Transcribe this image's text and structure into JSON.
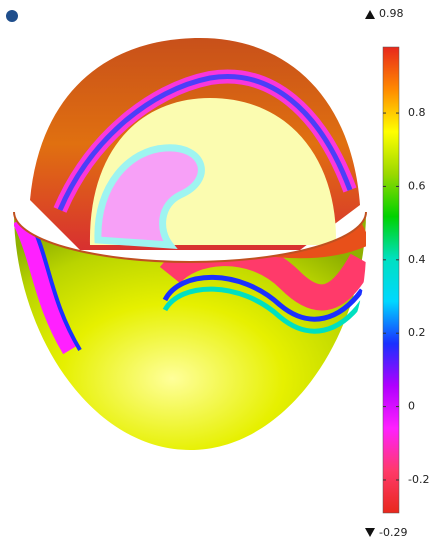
{
  "chart_data": {
    "type": "surface",
    "clim": [
      -0.29,
      0.98
    ],
    "cticks": [
      -0.2,
      0,
      0.2,
      0.4,
      0.6,
      0.8
    ],
    "colormap": [
      "#e8281c",
      "#ff8a00",
      "#ffff00",
      "#9ad800",
      "#00d200",
      "#00e0c0",
      "#00d8ff",
      "#1a30ff",
      "#b000ff",
      "#ff20ff",
      "#ff3a6a",
      "#e8281c"
    ]
  }
}
